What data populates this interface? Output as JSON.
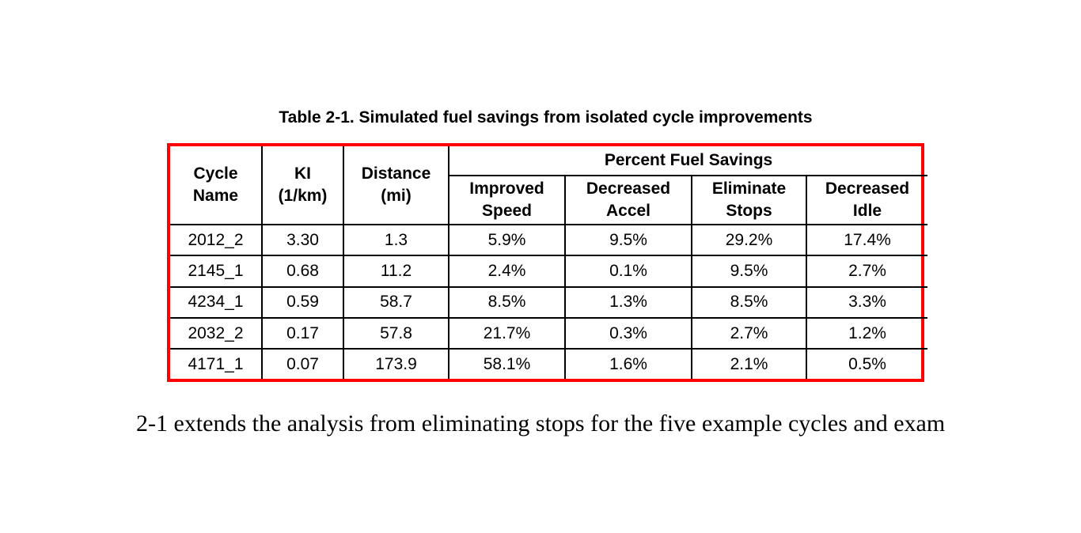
{
  "title": "Table 2-1. Simulated fuel savings from isolated cycle improvements",
  "table": {
    "border_color": "#ff0000",
    "grid_color": "#000000",
    "group_header": "Percent Fuel Savings",
    "columns": [
      {
        "label": "Cycle\nName"
      },
      {
        "label": "KI\n(1/km)"
      },
      {
        "label": "Distance\n(mi)"
      },
      {
        "label": "Improved\nSpeed"
      },
      {
        "label": "Decreased\nAccel"
      },
      {
        "label": "Eliminate\nStops"
      },
      {
        "label": "Decreased\nIdle"
      }
    ],
    "rows": [
      [
        "2012_2",
        "3.30",
        "1.3",
        "5.9%",
        "9.5%",
        "29.2%",
        "17.4%"
      ],
      [
        "2145_1",
        "0.68",
        "11.2",
        "2.4%",
        "0.1%",
        "9.5%",
        "2.7%"
      ],
      [
        "4234_1",
        "0.59",
        "58.7",
        "8.5%",
        "1.3%",
        "8.5%",
        "3.3%"
      ],
      [
        "2032_2",
        "0.17",
        "57.8",
        "21.7%",
        "0.3%",
        "2.7%",
        "1.2%"
      ],
      [
        "4171_1",
        "0.07",
        "173.9",
        "58.1%",
        "1.6%",
        "2.1%",
        "0.5%"
      ]
    ]
  },
  "caption_text": "2-1 extends the analysis from eliminating stops for the five example cycles and exam"
}
